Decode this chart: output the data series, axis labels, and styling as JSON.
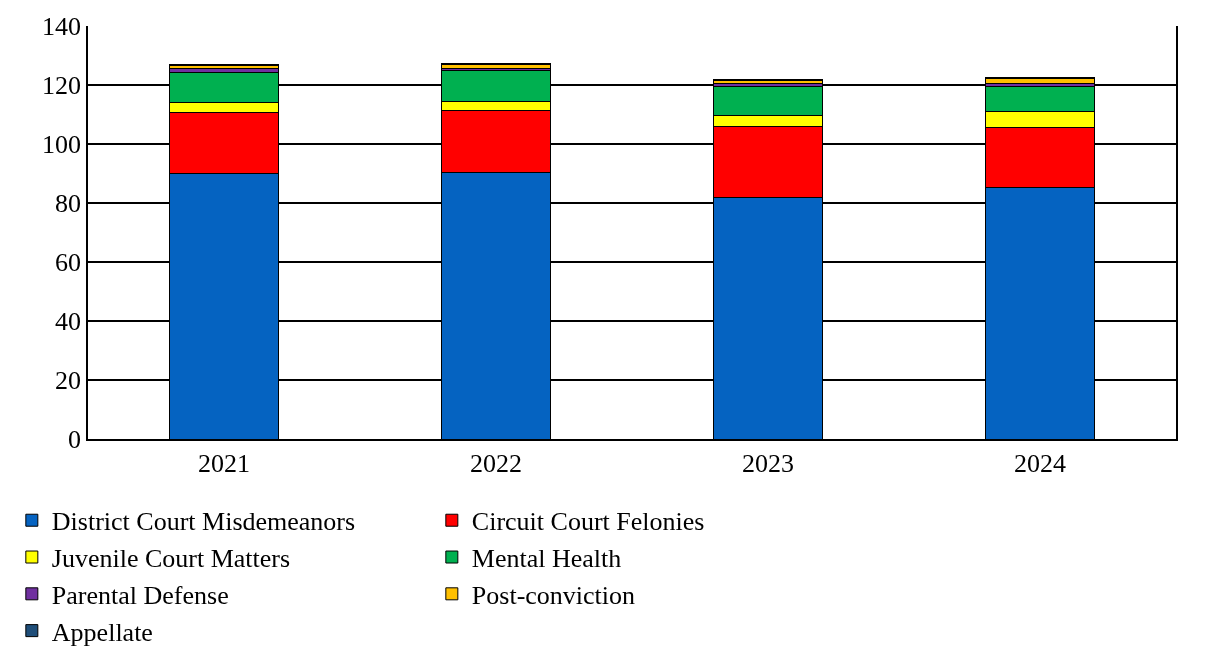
{
  "chart_data": {
    "type": "bar",
    "stacked": true,
    "categories": [
      "2021",
      "2022",
      "2023",
      "2024"
    ],
    "series": [
      {
        "name": "District Court Misdemeanors",
        "color": "#0563c1",
        "values": [
          90,
          90.5,
          82,
          85.4
        ]
      },
      {
        "name": "Circuit Court Felonies",
        "color": "#ff0000",
        "values": [
          20.6,
          21,
          24,
          20.3
        ]
      },
      {
        "name": "Juvenile Court Matters",
        "color": "#ffff00",
        "values": [
          3.6,
          2.8,
          3.6,
          5.2
        ]
      },
      {
        "name": "Mental Health",
        "color": "#00b050",
        "values": [
          9.9,
          10.5,
          9.9,
          8.6
        ]
      },
      {
        "name": "Parental Defense",
        "color": "#7030a0",
        "values": [
          1.4,
          0.7,
          0.9,
          0.9
        ]
      },
      {
        "name": "Post-conviction",
        "color": "#ffc000",
        "values": [
          1,
          1.5,
          1.2,
          1.7
        ]
      },
      {
        "name": "Appellate",
        "color": "#1f4e79",
        "values": [
          0.3,
          0.4,
          0.3,
          0.4
        ]
      }
    ],
    "ylim": [
      0,
      140
    ],
    "yticks": [
      0,
      20,
      40,
      60,
      80,
      100,
      120,
      140
    ],
    "grid": "y",
    "legend": "bottom"
  }
}
